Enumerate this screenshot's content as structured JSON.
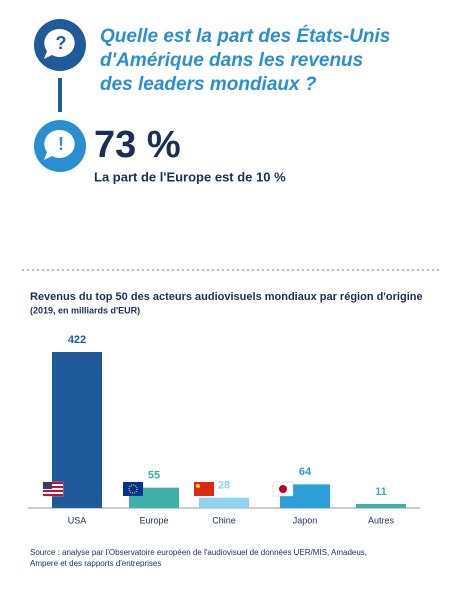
{
  "header": {
    "question_lines": [
      "Quelle est la part des États-Unis",
      "d'Amérique dans les revenus",
      "des leaders mondiaux ?"
    ],
    "headline": "73 %",
    "subheadline": "La part de l'Europe est de 10 %"
  },
  "chart_data": {
    "type": "bar",
    "title": "Revenus du top 50 des acteurs audiovisuels mondiaux par région d'origine",
    "subtitle": "(2019, en milliards d'EUR)",
    "categories": [
      "USA",
      "Europe",
      "Chine",
      "Japon",
      "Autres"
    ],
    "values": [
      422,
      55,
      28,
      64,
      11
    ],
    "colors": [
      "#1f5a9a",
      "#3fb0a8",
      "#8fd3f0",
      "#2a9fd8",
      "#3fb0a8"
    ],
    "source_lines": [
      "Source : analyse par l'Observatoire européen de l'audiovisuel de données UER/MIS, Amadeus,",
      "Ampere et des rapports d'entreprises"
    ]
  }
}
